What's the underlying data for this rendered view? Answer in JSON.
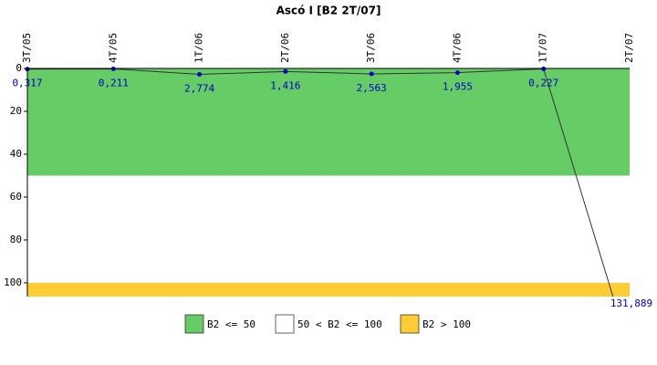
{
  "chart_data": {
    "type": "line",
    "title": "Ascó I [B2 2T/07]",
    "categories": [
      "3T/05",
      "4T/05",
      "1T/06",
      "2T/06",
      "3T/06",
      "4T/06",
      "1T/07",
      "2T/07"
    ],
    "series": [
      {
        "name": "B2",
        "color": "#333333",
        "marker_color": "#0000cc",
        "values": [
          0.317,
          0.211,
          2.774,
          1.416,
          2.563,
          1.955,
          0.227,
          131.889
        ],
        "value_labels": [
          "0,317",
          "0,211",
          "2,774",
          "1,416",
          "2,563",
          "1,955",
          "0,227",
          "131,889"
        ]
      }
    ],
    "ylim": [
      0,
      106.4
    ],
    "yticks": [
      0,
      20,
      40,
      60,
      80,
      100
    ],
    "y_inverted": true,
    "bands": [
      {
        "name": "B2 <= 50",
        "color": "#66cc66",
        "from": 0
      },
      {
        "name": "50 < B2 <= 100",
        "color": "#ffffff",
        "from": 50
      },
      {
        "name": "B2 > 100",
        "color": "#ffcc33",
        "from": 100
      }
    ]
  }
}
